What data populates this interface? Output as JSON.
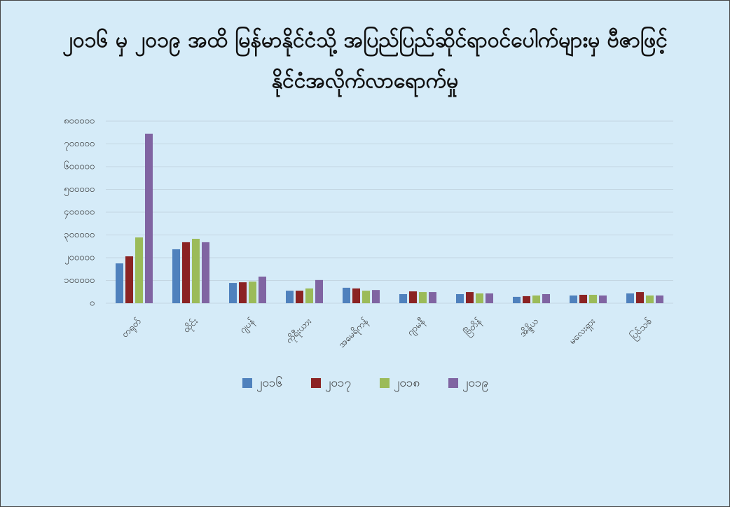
{
  "chart_data": {
    "type": "bar",
    "title": "၂၀၁၆ မှ ၂၀၁၉ အထိ မြန်မာနိုင်ငံသို့ အပြည်ပြည်ဆိုင်ရာဝင်ပေါက်များမှ ဗီဇာဖြင့်နိုင်ငံအလိုက်လာရောက်မှု",
    "categories": [
      "တရုတ်",
      "ထိုင်း",
      "ဂျပန်",
      "ကိုရီးယား",
      "အမေရိကန်",
      "ဂျာမနီ",
      "ဗြိတိန်",
      "အိန္ဒိယ",
      "မလေးရှား",
      "ပြင်သစ်"
    ],
    "series": [
      {
        "name": "၂၀၁၆",
        "color": "#4f81bd",
        "values": [
          175000,
          237000,
          89000,
          55000,
          68000,
          40000,
          40000,
          28000,
          34000,
          43000
        ]
      },
      {
        "name": "၂၀၁၇",
        "color": "#8b2323",
        "values": [
          206000,
          268000,
          92000,
          55000,
          65000,
          52000,
          49000,
          31000,
          37000,
          49000
        ]
      },
      {
        "name": "၂၀၁၈",
        "color": "#9bbb59",
        "values": [
          289000,
          283000,
          95000,
          65000,
          55000,
          49000,
          43000,
          34000,
          37000,
          34000
        ]
      },
      {
        "name": "၂၀၁၉",
        "color": "#8064a2",
        "values": [
          745000,
          268000,
          117000,
          102000,
          58000,
          49000,
          43000,
          40000,
          34000,
          34000
        ]
      }
    ],
    "ylim": [
      0,
      800000
    ],
    "yticks": [
      {
        "value": 0,
        "label": "၀"
      },
      {
        "value": 100000,
        "label": "၁၀၀၀၀၀"
      },
      {
        "value": 200000,
        "label": "၂၀၀၀၀၀"
      },
      {
        "value": 300000,
        "label": "၃၀၀၀၀၀"
      },
      {
        "value": 400000,
        "label": "၄၀၀၀၀၀"
      },
      {
        "value": 500000,
        "label": "၅၀၀၀၀၀"
      },
      {
        "value": 600000,
        "label": "၆၀၀၀၀၀"
      },
      {
        "value": 700000,
        "label": "၇၀၀၀၀၀"
      },
      {
        "value": 800000,
        "label": "၈၀၀၀၀၀"
      }
    ],
    "grid": true
  }
}
